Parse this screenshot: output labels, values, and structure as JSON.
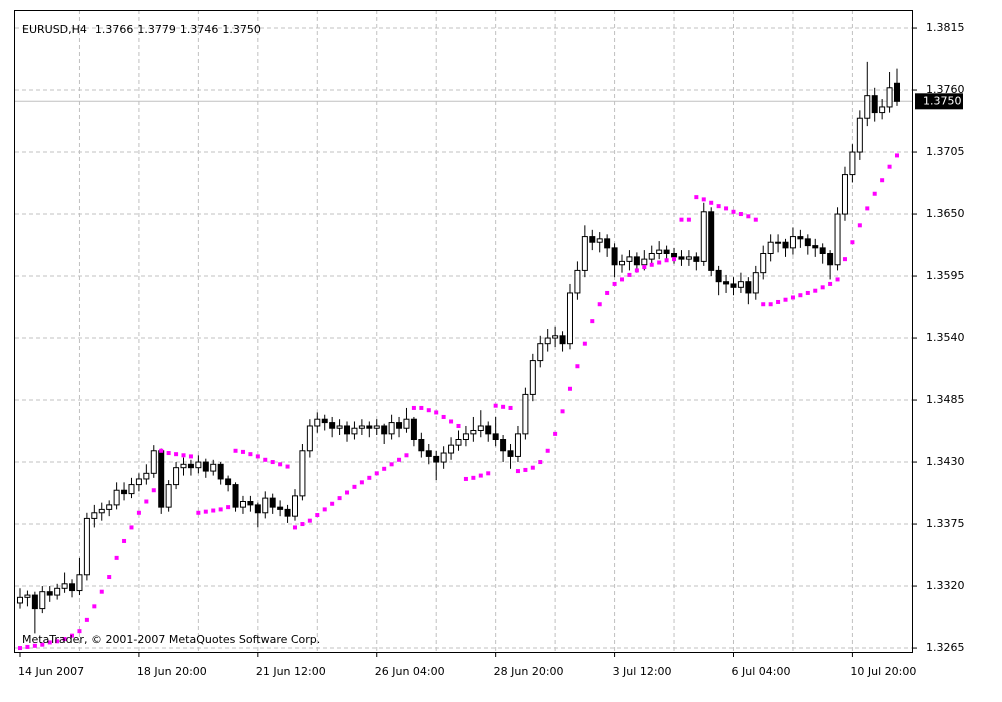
{
  "chart_data": {
    "type": "candlestick",
    "title": "EURUSD,H4",
    "footer": "MetaTrader, © 2001-2007 MetaQuotes Software Corp.",
    "last_price_label": "1.3750",
    "candle_color": "#000000",
    "sar_color": "#ff00ff",
    "grid": true,
    "ylim": [
      1.32615,
      1.3831
    ],
    "yticks": [
      {
        "value": 1.3265,
        "label": "1.3265"
      },
      {
        "value": 1.332,
        "label": "1.3320"
      },
      {
        "value": 1.3375,
        "label": "1.3375"
      },
      {
        "value": 1.343,
        "label": "1.3430"
      },
      {
        "value": 1.3485,
        "label": "1.3485"
      },
      {
        "value": 1.354,
        "label": "1.3540"
      },
      {
        "value": 1.3595,
        "label": "1.3595"
      },
      {
        "value": 1.365,
        "label": "1.3650"
      },
      {
        "value": 1.3705,
        "label": "1.3705"
      },
      {
        "value": 1.376,
        "label": "1.3760"
      },
      {
        "value": 1.3815,
        "label": "1.3815"
      }
    ],
    "categories": [
      "14 Jun 2007",
      null,
      null,
      null,
      null,
      null,
      null,
      null,
      null,
      null,
      null,
      null,
      null,
      null,
      null,
      null,
      "18 Jun 20:00",
      null,
      null,
      null,
      null,
      null,
      null,
      null,
      null,
      null,
      null,
      null,
      null,
      null,
      null,
      null,
      "21 Jun 12:00",
      null,
      null,
      null,
      null,
      null,
      null,
      null,
      null,
      null,
      null,
      null,
      null,
      null,
      null,
      null,
      "26 Jun 04:00",
      null,
      null,
      null,
      null,
      null,
      null,
      null,
      null,
      null,
      null,
      null,
      null,
      null,
      null,
      null,
      "28 Jun 20:00",
      null,
      null,
      null,
      null,
      null,
      null,
      null,
      null,
      null,
      null,
      null,
      null,
      null,
      null,
      null,
      "3 Jul 12:00",
      null,
      null,
      null,
      null,
      null,
      null,
      null,
      null,
      null,
      null,
      null,
      null,
      null,
      null,
      null,
      "6 Jul 04:00",
      null,
      null,
      null,
      null,
      null,
      null,
      null,
      null,
      null,
      null,
      null,
      null,
      null,
      null,
      null,
      "10 Jul 20:00",
      null,
      null,
      null,
      null,
      null,
      null
    ],
    "candles": [
      [
        1.3305,
        1.3318,
        1.33,
        1.331
      ],
      [
        1.331,
        1.3316,
        1.3302,
        1.3312
      ],
      [
        1.3312,
        1.3315,
        1.3278,
        1.33
      ],
      [
        1.33,
        1.332,
        1.3296,
        1.3315
      ],
      [
        1.3315,
        1.332,
        1.3306,
        1.3312
      ],
      [
        1.3312,
        1.3322,
        1.3308,
        1.3318
      ],
      [
        1.3318,
        1.3332,
        1.3314,
        1.3322
      ],
      [
        1.3322,
        1.3326,
        1.331,
        1.3316
      ],
      [
        1.3316,
        1.3345,
        1.3312,
        1.333
      ],
      [
        1.333,
        1.3385,
        1.3325,
        1.338
      ],
      [
        1.338,
        1.3392,
        1.3372,
        1.3385
      ],
      [
        1.3385,
        1.3394,
        1.3378,
        1.3388
      ],
      [
        1.3388,
        1.3396,
        1.3382,
        1.3392
      ],
      [
        1.3392,
        1.3412,
        1.3388,
        1.3405
      ],
      [
        1.3405,
        1.3412,
        1.3396,
        1.3402
      ],
      [
        1.3402,
        1.3416,
        1.3398,
        1.341
      ],
      [
        1.341,
        1.342,
        1.3404,
        1.3415
      ],
      [
        1.3415,
        1.3428,
        1.341,
        1.342
      ],
      [
        1.342,
        1.3445,
        1.3416,
        1.344
      ],
      [
        1.344,
        1.3442,
        1.3384,
        1.339
      ],
      [
        1.339,
        1.3414,
        1.3386,
        1.341
      ],
      [
        1.341,
        1.343,
        1.3406,
        1.3425
      ],
      [
        1.3425,
        1.3434,
        1.3418,
        1.3428
      ],
      [
        1.3428,
        1.3432,
        1.3418,
        1.3425
      ],
      [
        1.3425,
        1.3436,
        1.342,
        1.343
      ],
      [
        1.343,
        1.3433,
        1.3416,
        1.3422
      ],
      [
        1.3422,
        1.3432,
        1.3418,
        1.3428
      ],
      [
        1.3428,
        1.343,
        1.341,
        1.3415
      ],
      [
        1.3415,
        1.3418,
        1.3404,
        1.341
      ],
      [
        1.341,
        1.3412,
        1.3386,
        1.339
      ],
      [
        1.339,
        1.34,
        1.3384,
        1.3395
      ],
      [
        1.3395,
        1.34,
        1.3386,
        1.3392
      ],
      [
        1.3392,
        1.3394,
        1.3372,
        1.3385
      ],
      [
        1.3385,
        1.3404,
        1.338,
        1.3398
      ],
      [
        1.3398,
        1.3402,
        1.3384,
        1.339
      ],
      [
        1.339,
        1.3396,
        1.3382,
        1.3388
      ],
      [
        1.3388,
        1.3392,
        1.3376,
        1.3382
      ],
      [
        1.3382,
        1.3406,
        1.3378,
        1.34
      ],
      [
        1.34,
        1.3446,
        1.3396,
        1.344
      ],
      [
        1.344,
        1.3468,
        1.3434,
        1.3462
      ],
      [
        1.3462,
        1.3474,
        1.3456,
        1.3468
      ],
      [
        1.3468,
        1.3472,
        1.3458,
        1.3465
      ],
      [
        1.3465,
        1.347,
        1.3452,
        1.346
      ],
      [
        1.346,
        1.3468,
        1.3454,
        1.3462
      ],
      [
        1.3462,
        1.3466,
        1.3448,
        1.3455
      ],
      [
        1.3455,
        1.3466,
        1.345,
        1.346
      ],
      [
        1.346,
        1.3468,
        1.3454,
        1.3462
      ],
      [
        1.3462,
        1.3466,
        1.3452,
        1.346
      ],
      [
        1.346,
        1.3468,
        1.3454,
        1.3462
      ],
      [
        1.3462,
        1.3464,
        1.3446,
        1.3455
      ],
      [
        1.3455,
        1.3472,
        1.345,
        1.3465
      ],
      [
        1.3465,
        1.347,
        1.3452,
        1.346
      ],
      [
        1.346,
        1.3478,
        1.3456,
        1.3468
      ],
      [
        1.3468,
        1.347,
        1.3444,
        1.345
      ],
      [
        1.345,
        1.3456,
        1.3434,
        1.344
      ],
      [
        1.344,
        1.3446,
        1.3428,
        1.3435
      ],
      [
        1.3435,
        1.344,
        1.3414,
        1.343
      ],
      [
        1.343,
        1.3444,
        1.3424,
        1.3438
      ],
      [
        1.3438,
        1.3452,
        1.3432,
        1.3445
      ],
      [
        1.3445,
        1.3458,
        1.344,
        1.345
      ],
      [
        1.345,
        1.3462,
        1.3444,
        1.3455
      ],
      [
        1.3455,
        1.347,
        1.3448,
        1.3458
      ],
      [
        1.3458,
        1.3476,
        1.3452,
        1.3462
      ],
      [
        1.3462,
        1.3466,
        1.3448,
        1.3455
      ],
      [
        1.3455,
        1.347,
        1.3444,
        1.345
      ],
      [
        1.345,
        1.3454,
        1.343,
        1.344
      ],
      [
        1.344,
        1.3446,
        1.3424,
        1.3435
      ],
      [
        1.3435,
        1.3462,
        1.343,
        1.3455
      ],
      [
        1.3455,
        1.3496,
        1.345,
        1.349
      ],
      [
        1.349,
        1.3526,
        1.3484,
        1.352
      ],
      [
        1.352,
        1.3542,
        1.3514,
        1.3535
      ],
      [
        1.3535,
        1.3548,
        1.3528,
        1.354
      ],
      [
        1.354,
        1.355,
        1.3532,
        1.3542
      ],
      [
        1.3542,
        1.3546,
        1.3528,
        1.3535
      ],
      [
        1.3535,
        1.3588,
        1.353,
        1.358
      ],
      [
        1.358,
        1.3608,
        1.3574,
        1.36
      ],
      [
        1.36,
        1.364,
        1.3594,
        1.363
      ],
      [
        1.363,
        1.3636,
        1.3618,
        1.3625
      ],
      [
        1.3625,
        1.3634,
        1.3616,
        1.3628
      ],
      [
        1.3628,
        1.3632,
        1.3612,
        1.362
      ],
      [
        1.362,
        1.3624,
        1.3594,
        1.3605
      ],
      [
        1.3605,
        1.3614,
        1.3598,
        1.3608
      ],
      [
        1.3608,
        1.3618,
        1.36,
        1.3612
      ],
      [
        1.3612,
        1.3616,
        1.3598,
        1.3605
      ],
      [
        1.3605,
        1.3618,
        1.36,
        1.361
      ],
      [
        1.361,
        1.3622,
        1.3604,
        1.3615
      ],
      [
        1.3615,
        1.3626,
        1.361,
        1.3618
      ],
      [
        1.3618,
        1.3622,
        1.3608,
        1.3615
      ],
      [
        1.3615,
        1.362,
        1.3606,
        1.3612
      ],
      [
        1.3612,
        1.3618,
        1.3604,
        1.361
      ],
      [
        1.361,
        1.3618,
        1.3604,
        1.3612
      ],
      [
        1.3612,
        1.3616,
        1.36,
        1.3608
      ],
      [
        1.3608,
        1.366,
        1.3604,
        1.3652
      ],
      [
        1.3652,
        1.3656,
        1.3595,
        1.36
      ],
      [
        1.36,
        1.3604,
        1.3578,
        1.359
      ],
      [
        1.359,
        1.3596,
        1.358,
        1.3588
      ],
      [
        1.3588,
        1.3594,
        1.3578,
        1.3585
      ],
      [
        1.3585,
        1.3598,
        1.358,
        1.359
      ],
      [
        1.359,
        1.3594,
        1.357,
        1.358
      ],
      [
        1.358,
        1.3604,
        1.3574,
        1.3598
      ],
      [
        1.3598,
        1.3622,
        1.3592,
        1.3615
      ],
      [
        1.3615,
        1.3632,
        1.3608,
        1.3625
      ],
      [
        1.3625,
        1.3632,
        1.3616,
        1.3625
      ],
      [
        1.3625,
        1.3628,
        1.3612,
        1.362
      ],
      [
        1.362,
        1.3638,
        1.3614,
        1.363
      ],
      [
        1.363,
        1.3636,
        1.362,
        1.3628
      ],
      [
        1.3628,
        1.3632,
        1.3614,
        1.3622
      ],
      [
        1.3622,
        1.3628,
        1.3612,
        1.362
      ],
      [
        1.362,
        1.3624,
        1.3606,
        1.3615
      ],
      [
        1.3615,
        1.3618,
        1.3592,
        1.3605
      ],
      [
        1.3605,
        1.3656,
        1.36,
        1.365
      ],
      [
        1.365,
        1.3692,
        1.3644,
        1.3685
      ],
      [
        1.3685,
        1.3712,
        1.3678,
        1.3705
      ],
      [
        1.3705,
        1.3742,
        1.3698,
        1.3735
      ],
      [
        1.3735,
        1.3785,
        1.3728,
        1.3755
      ],
      [
        1.3755,
        1.3762,
        1.3732,
        1.374
      ],
      [
        1.374,
        1.3752,
        1.3734,
        1.3745
      ],
      [
        1.3745,
        1.3776,
        1.374,
        1.3762
      ],
      [
        1.3766,
        1.3779,
        1.3746,
        1.375
      ]
    ],
    "sar": [
      1.3265,
      1.3266,
      1.3267,
      1.3268,
      1.327,
      1.3271,
      1.3273,
      1.3276,
      1.328,
      1.329,
      1.3302,
      1.3315,
      1.3328,
      1.3345,
      1.336,
      1.3372,
      1.3385,
      1.3395,
      1.3405,
      1.344,
      1.3438,
      1.3437,
      1.3436,
      1.3435,
      1.3385,
      1.3386,
      1.3387,
      1.3388,
      1.339,
      1.344,
      1.3439,
      1.3437,
      1.3435,
      1.3432,
      1.343,
      1.3428,
      1.3426,
      1.3372,
      1.3375,
      1.3378,
      1.3383,
      1.3388,
      1.3393,
      1.3398,
      1.3403,
      1.3408,
      1.3412,
      1.3416,
      1.342,
      1.3424,
      1.3428,
      1.3432,
      1.3436,
      1.3478,
      1.3478,
      1.3476,
      1.3474,
      1.347,
      1.3466,
      1.3462,
      1.3415,
      1.3416,
      1.3418,
      1.342,
      1.348,
      1.3479,
      1.3478,
      1.3422,
      1.3423,
      1.3425,
      1.343,
      1.344,
      1.3455,
      1.3475,
      1.3495,
      1.3515,
      1.3535,
      1.3555,
      1.357,
      1.358,
      1.3588,
      1.3592,
      1.3596,
      1.36,
      1.3603,
      1.3605,
      1.3607,
      1.3609,
      1.361,
      1.3645,
      1.3645,
      1.3665,
      1.3663,
      1.366,
      1.3657,
      1.3655,
      1.3652,
      1.365,
      1.3648,
      1.3645,
      1.357,
      1.357,
      1.3572,
      1.3574,
      1.3576,
      1.3578,
      1.358,
      1.3582,
      1.3585,
      1.3588,
      1.3592,
      1.361,
      1.3625,
      1.364,
      1.3655,
      1.3668,
      1.368,
      1.3692,
      1.3702
    ]
  }
}
